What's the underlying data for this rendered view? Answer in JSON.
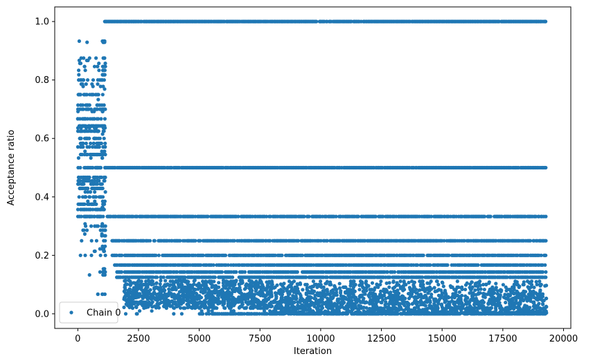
{
  "chart_data": {
    "type": "scatter",
    "title": "",
    "xlabel": "Iteration",
    "ylabel": "Acceptance ratio",
    "xlim": [
      -950,
      20300
    ],
    "ylim": [
      -0.05,
      1.05
    ],
    "x_ticks": [
      0,
      2500,
      5000,
      7500,
      10000,
      12500,
      15000,
      17500,
      20000
    ],
    "x_tick_labels": [
      "0",
      "2500",
      "5000",
      "7500",
      "10000",
      "12500",
      "15000",
      "17500",
      "20000"
    ],
    "y_ticks": [
      0.0,
      0.2,
      0.4,
      0.6,
      0.8,
      1.0
    ],
    "y_tick_labels": [
      "0.0",
      "0.2",
      "0.4",
      "0.6",
      "0.8",
      "1.0"
    ],
    "grid": false,
    "legend": {
      "position": "lower-left",
      "entries": [
        "Chain 0"
      ]
    },
    "marker_color": "#1f77b4",
    "series": [
      {
        "name": "Chain 0",
        "description_points": "sampled reconstruction of acceptance ratios",
        "early_phase": {
          "x_range": [
            0,
            1150
          ],
          "y_levels": [
            0.933,
            0.929,
            0.875,
            0.867,
            0.857,
            0.846,
            0.833,
            0.818,
            0.8,
            0.786,
            0.778,
            0.769,
            0.75,
            0.733,
            0.714,
            0.7,
            0.692,
            0.667,
            0.643,
            0.636,
            0.625,
            0.615,
            0.6,
            0.583,
            0.571,
            0.556,
            0.545,
            0.533,
            0.5,
            0.467,
            0.455,
            0.444,
            0.429,
            0.417,
            0.4,
            0.385,
            0.375,
            0.364,
            0.357,
            0.333,
            0.308,
            0.3,
            0.286,
            0.273,
            0.267,
            0.25,
            0.231,
            0.222,
            0.214,
            0.2,
            0.154,
            0.143,
            0.133,
            0.067
          ]
        },
        "late_phase": {
          "x_range": [
            1100,
            19300
          ],
          "bands": [
            {
              "y": 1.0,
              "x_start": 1100,
              "x_end": 19300
            },
            {
              "y": 0.5,
              "x_start": 1100,
              "x_end": 19300
            },
            {
              "y": 0.333,
              "x_start": 1200,
              "x_end": 19300
            },
            {
              "y": 0.25,
              "x_start": 1400,
              "x_end": 19300
            },
            {
              "y": 0.2,
              "x_start": 1400,
              "x_end": 19300
            },
            {
              "y": 0.167,
              "x_start": 1500,
              "x_end": 19300
            },
            {
              "y": 0.143,
              "x_start": 1600,
              "x_end": 19300
            },
            {
              "y": 0.125,
              "x_start": 1600,
              "x_end": 19300
            }
          ],
          "dense_region": {
            "y_range": [
              0.0,
              0.12
            ],
            "x_start": 1900,
            "x_end": 19300
          }
        }
      }
    ]
  }
}
